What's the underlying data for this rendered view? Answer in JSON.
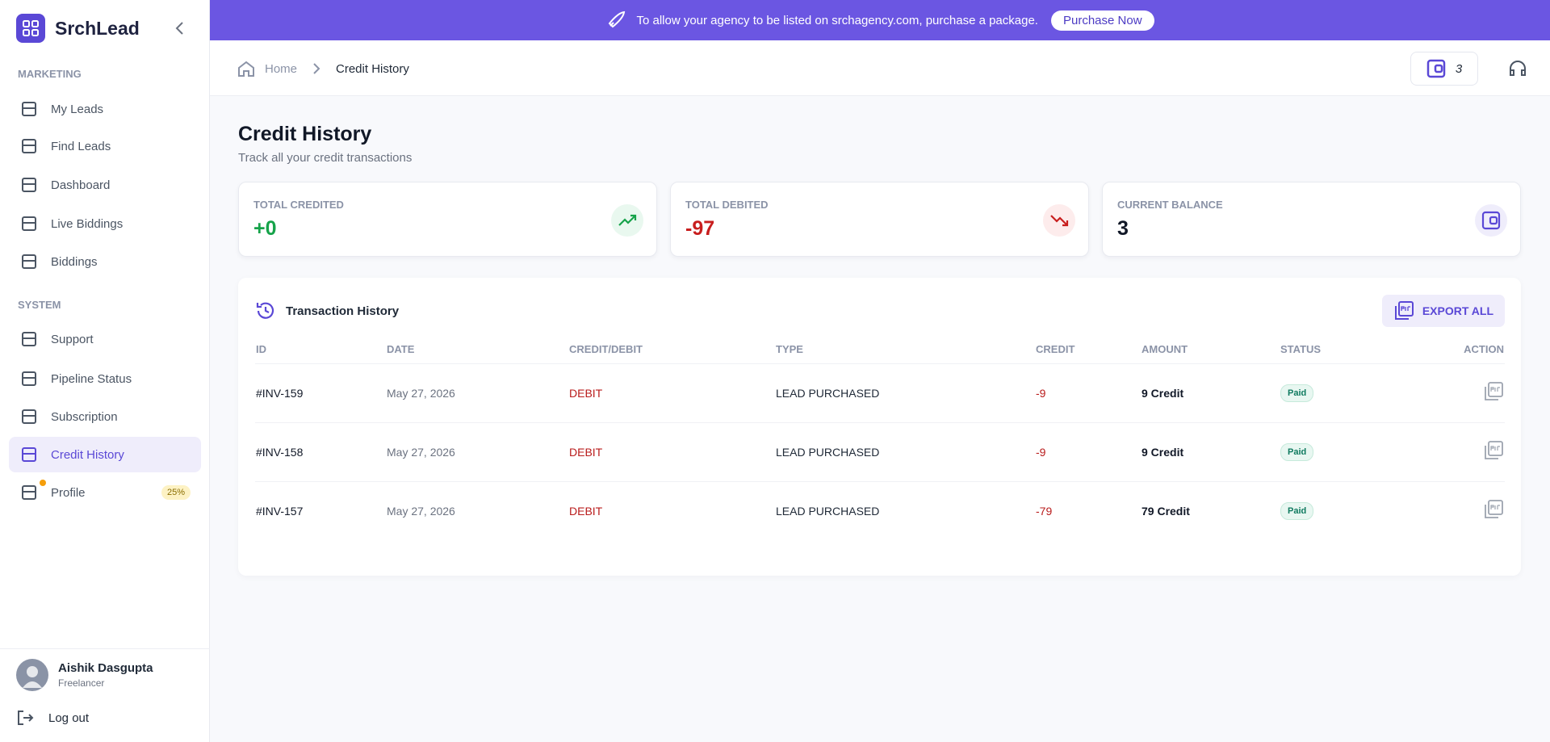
{
  "sidebar": {
    "brand": "SrchLead",
    "sections": [
      {
        "title": "MARKETING",
        "items": [
          "My Leads",
          "Find Leads",
          "Dashboard",
          "Live Biddings",
          "Biddings"
        ]
      },
      {
        "title": "SYSTEM",
        "items": [
          "Support",
          "Pipeline Status",
          "Subscription",
          "Credit History",
          "Profile"
        ]
      }
    ],
    "profile_badge": "25%",
    "user": {
      "name": "Aishik Dasgupta",
      "role": "Freelancer"
    },
    "logout": "Log out"
  },
  "banner": {
    "text": "To allow your agency to be listed on srchagency.com, purchase a package.",
    "button": "Purchase Now"
  },
  "breadcrumb": [
    "Home",
    "Credit History"
  ],
  "header": {
    "wallet": "3"
  },
  "page": {
    "title": "Credit History",
    "subtitle": "Track all your credit transactions"
  },
  "stats": [
    {
      "label": "TOTAL CREDITED",
      "value": "+0"
    },
    {
      "label": "TOTAL DEBITED",
      "value": "-97"
    },
    {
      "label": "CURRENT BALANCE",
      "value": "3"
    }
  ],
  "table": {
    "title": "Transaction History",
    "export": "EXPORT ALL",
    "columns": [
      "ID",
      "DATE",
      "CREDIT/DEBIT",
      "TYPE",
      "CREDIT",
      "AMOUNT",
      "STATUS",
      "ACTION"
    ],
    "rows": [
      [
        "#INV-159",
        "May 27, 2026",
        "DEBIT",
        "LEAD PURCHASED",
        "-9",
        "9 Credit",
        "Paid"
      ],
      [
        "#INV-158",
        "May 27, 2026",
        "DEBIT",
        "LEAD PURCHASED",
        "-9",
        "9 Credit",
        "Paid"
      ],
      [
        "#INV-157",
        "May 27, 2026",
        "DEBIT",
        "LEAD PURCHASED",
        "-79",
        "79 Credit",
        "Paid"
      ]
    ]
  }
}
